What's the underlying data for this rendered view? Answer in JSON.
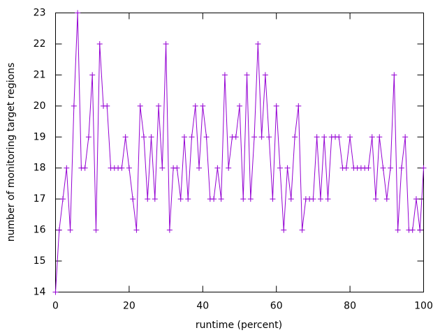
{
  "chart_data": {
    "type": "line",
    "xlabel": "runtime (percent)",
    "ylabel": "number of monitoring target regions",
    "x": [
      0,
      1,
      2,
      3,
      4,
      5,
      6,
      7,
      8,
      9,
      10,
      11,
      12,
      13,
      14,
      15,
      16,
      17,
      18,
      19,
      20,
      21,
      22,
      23,
      24,
      25,
      26,
      27,
      28,
      29,
      30,
      31,
      32,
      33,
      34,
      35,
      36,
      37,
      38,
      39,
      40,
      41,
      42,
      43,
      44,
      45,
      46,
      47,
      48,
      49,
      50,
      51,
      52,
      53,
      54,
      55,
      56,
      57,
      58,
      59,
      60,
      61,
      62,
      63,
      64,
      65,
      66,
      67,
      68,
      69,
      70,
      71,
      72,
      73,
      74,
      75,
      76,
      77,
      78,
      79,
      80,
      81,
      82,
      83,
      84,
      85,
      86,
      87,
      88,
      89,
      90,
      91,
      92,
      93,
      94,
      95,
      96,
      97,
      98,
      99,
      100
    ],
    "values": [
      14,
      16,
      17,
      18,
      16,
      20,
      23,
      18,
      18,
      19,
      21,
      16,
      22,
      20,
      20,
      18,
      18,
      18,
      18,
      19,
      18,
      17,
      16,
      20,
      19,
      17,
      19,
      17,
      20,
      18,
      22,
      16,
      18,
      18,
      17,
      19,
      17,
      19,
      20,
      18,
      20,
      19,
      17,
      17,
      18,
      17,
      21,
      18,
      19,
      19,
      20,
      17,
      21,
      17,
      19,
      22,
      19,
      21,
      19,
      17,
      20,
      18,
      16,
      18,
      17,
      19,
      20,
      16,
      17,
      17,
      17,
      19,
      17,
      19,
      17,
      19,
      19,
      19,
      18,
      18,
      19,
      18,
      18,
      18,
      18,
      18,
      19,
      17,
      19,
      18,
      17,
      18,
      21,
      16,
      18,
      19,
      16,
      16,
      17,
      16,
      18
    ],
    "color": "#9400d3",
    "xlim": [
      0,
      100
    ],
    "xticks": [
      0,
      20,
      40,
      60,
      80,
      100
    ],
    "ylim": [
      14,
      23
    ],
    "yticks": [
      14,
      15,
      16,
      17,
      18,
      19,
      20,
      21,
      22,
      23
    ]
  }
}
